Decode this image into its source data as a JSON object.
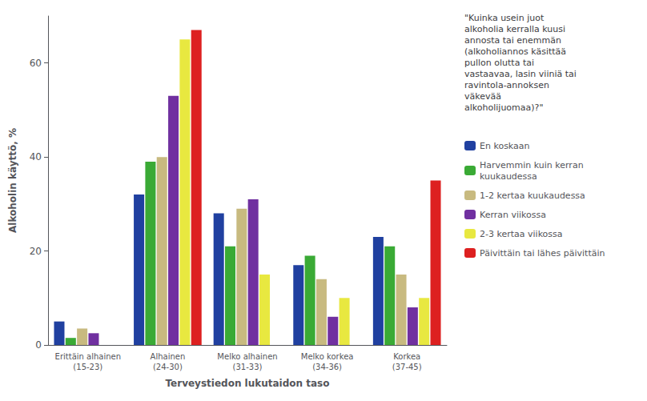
{
  "chart_data": {
    "type": "bar",
    "title": "\"Kuinka usein juot\nalkoholia kerralla kuusi\nannosta tai enemmän\n(alkoholiannos käsittää\npullon olutta tai\nvastaavaa, lasin viiniä tai\nravintola-annoksen\nväkevää\nalkoholijuomaa)?\"",
    "xlabel": "Terveystiedon lukutaidon taso",
    "ylabel": "Alkoholin käyttö, %",
    "categories": [
      "Erittäin alhainen\n(15-23)",
      "Alhainen\n(24-30)",
      "Melko alhainen\n(31-33)",
      "Melko korkea\n(34-36)",
      "Korkea\n(37-45)"
    ],
    "series": [
      {
        "name": "En koskaan",
        "color": "#2040a0",
        "values": [
          5,
          32,
          28,
          17,
          23
        ]
      },
      {
        "name": "Harvemmin kuin kerran\nkuukaudessa",
        "color": "#3aaa35",
        "values": [
          1.5,
          39,
          21,
          19,
          21
        ]
      },
      {
        "name": "1-2 kertaa kuukaudessa",
        "color": "#c8ba80",
        "values": [
          3.5,
          40,
          29,
          14,
          15
        ]
      },
      {
        "name": "Kerran viikossa",
        "color": "#7030a0",
        "values": [
          2.5,
          53,
          31,
          6,
          8
        ]
      },
      {
        "name": "2-3 kertaa viikossa",
        "color": "#e8e840",
        "values": [
          0,
          65,
          15,
          10,
          10
        ]
      },
      {
        "name": "Päivittäin tai lähes päivittäin",
        "color": "#dd2020",
        "values": [
          0,
          67,
          0,
          0,
          35
        ]
      }
    ],
    "ylim": [
      0,
      70
    ],
    "yticks": [
      0,
      20,
      40,
      60
    ],
    "grid": false,
    "legend": "right"
  }
}
